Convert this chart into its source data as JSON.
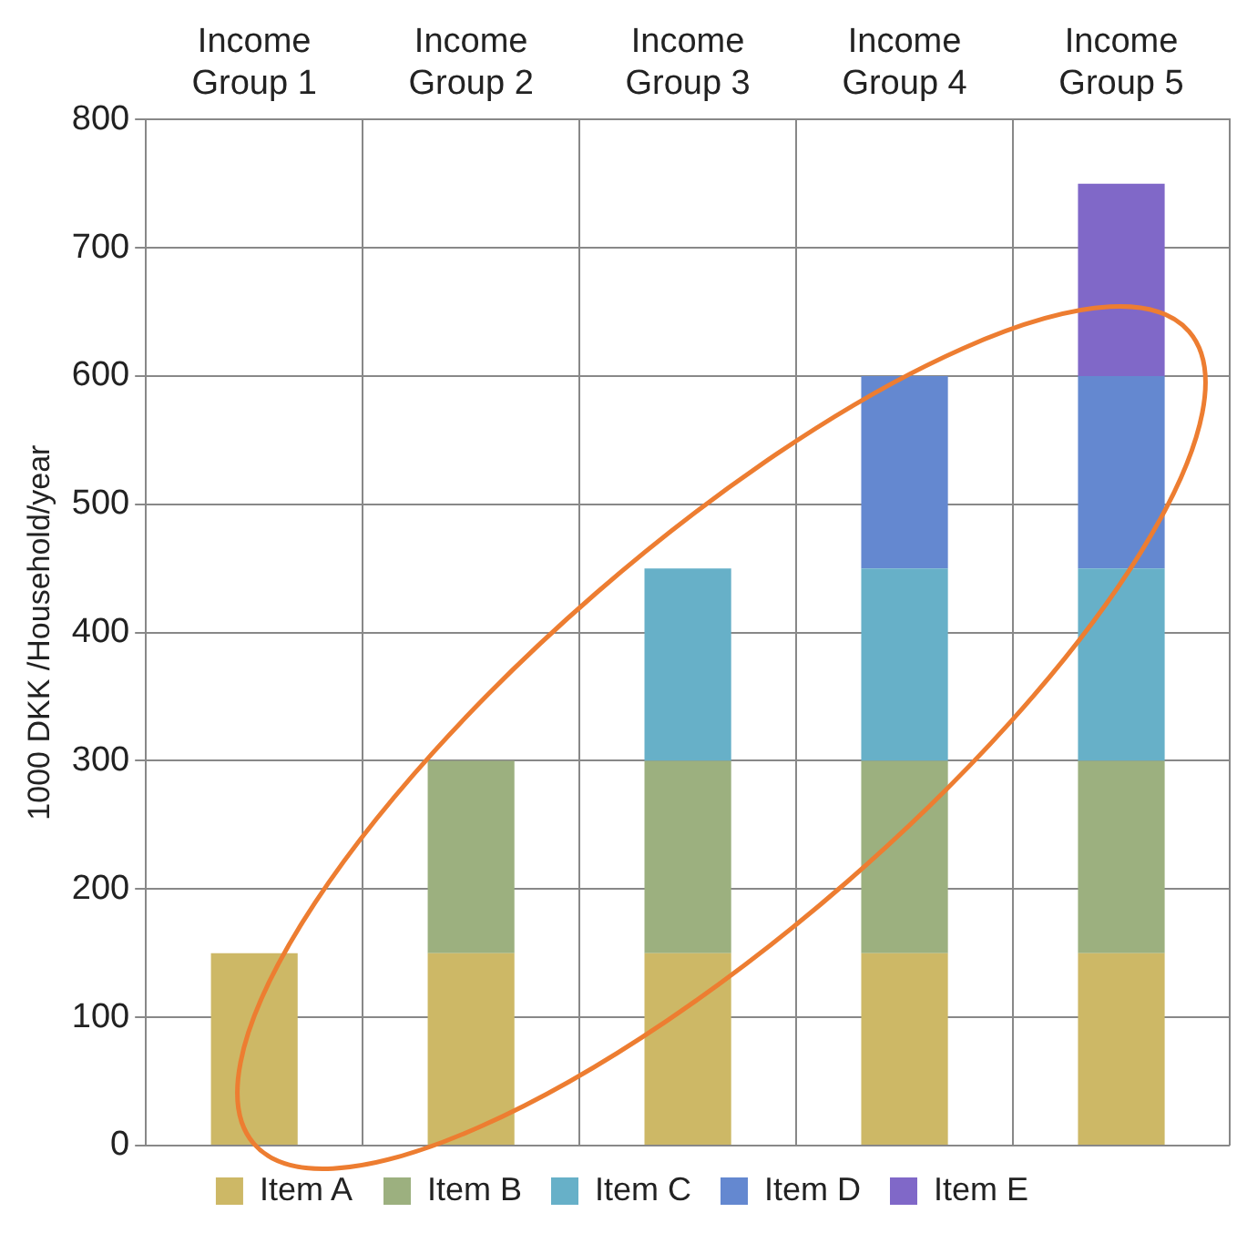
{
  "chart_data": {
    "type": "bar",
    "stacked": true,
    "ylabel": "1000 DKK /Household/year",
    "categories": [
      "Income Group 1",
      "Income Group 2",
      "Income Group 3",
      "Income Group 4",
      "Income Group 5"
    ],
    "series": [
      {
        "name": "Item A",
        "color": "#cdb866",
        "values": [
          150,
          150,
          150,
          150,
          150
        ]
      },
      {
        "name": "Item B",
        "color": "#9cb07f",
        "values": [
          null,
          150,
          150,
          150,
          150
        ]
      },
      {
        "name": "Item C",
        "color": "#67b0c8",
        "values": [
          null,
          null,
          150,
          150,
          150
        ]
      },
      {
        "name": "Item D",
        "color": "#6488d0",
        "values": [
          null,
          null,
          null,
          150,
          150
        ]
      },
      {
        "name": "Item E",
        "color": "#8068c8",
        "values": [
          null,
          null,
          null,
          null,
          150
        ]
      }
    ],
    "ylim": [
      0,
      800
    ],
    "yticks": [
      0,
      100,
      200,
      300,
      400,
      500,
      600,
      700,
      800
    ],
    "grid": true,
    "legend": "bottom"
  }
}
